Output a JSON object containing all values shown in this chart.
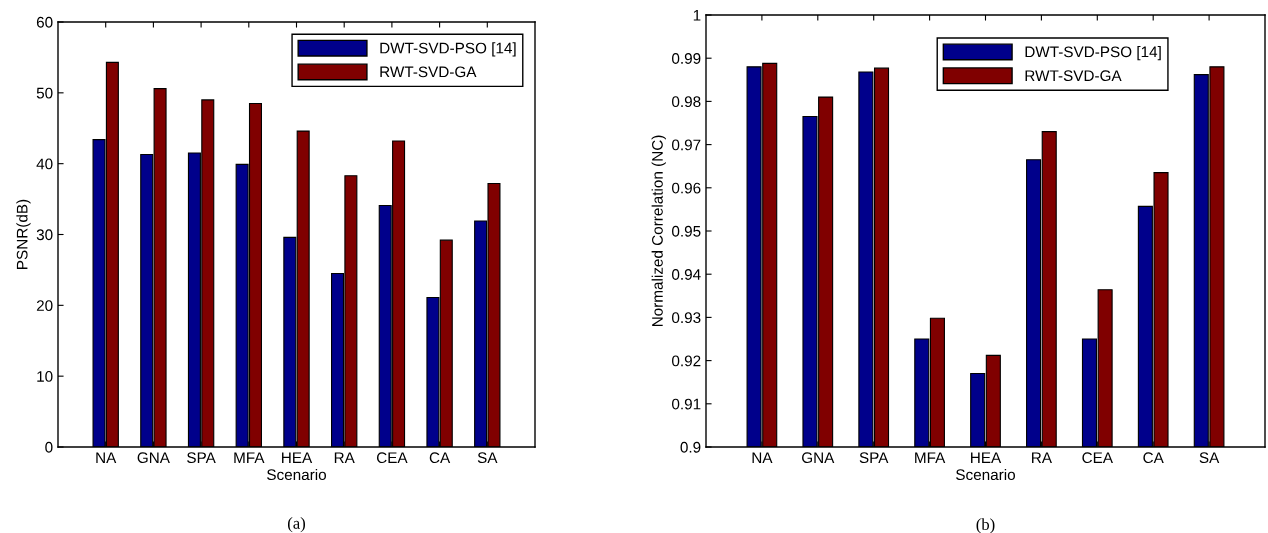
{
  "chart_data": [
    {
      "type": "bar",
      "xlabel": "Scenario",
      "ylabel": "PSNR(dB)",
      "categories": [
        "NA",
        "GNA",
        "SPA",
        "MFA",
        "HEA",
        "RA",
        "CEA",
        "CA",
        "SA"
      ],
      "series": [
        {
          "name": "DWT-SVD-PSO [14]",
          "color": "#00008b",
          "values": [
            43.4,
            41.3,
            41.5,
            39.9,
            29.6,
            24.5,
            34.1,
            21.1,
            31.9
          ]
        },
        {
          "name": "RWT-SVD-GA",
          "color": "#800000",
          "values": [
            54.3,
            50.6,
            49.0,
            48.5,
            44.6,
            38.3,
            43.2,
            29.2,
            37.2
          ]
        }
      ],
      "ylim": [
        0,
        60
      ],
      "yticks": [
        0,
        10,
        20,
        30,
        40,
        50,
        60
      ],
      "legend": "top right",
      "grid": false,
      "annotations": [
        "(a)"
      ]
    },
    {
      "type": "bar",
      "xlabel": "Scenario",
      "ylabel": "Normalized Correlation (NC)",
      "categories": [
        "NA",
        "GNA",
        "SPA",
        "MFA",
        "HEA",
        "RA",
        "CEA",
        "CA",
        "SA"
      ],
      "series": [
        {
          "name": "DWT-SVD-PSO [14]",
          "color": "#00008b",
          "values": [
            0.988,
            0.9765,
            0.9868,
            0.925,
            0.917,
            0.9665,
            0.925,
            0.9557,
            0.9862
          ]
        },
        {
          "name": "RWT-SVD-GA",
          "color": "#800000",
          "values": [
            0.9888,
            0.981,
            0.9877,
            0.9298,
            0.9212,
            0.973,
            0.9364,
            0.9635,
            0.988
          ]
        }
      ],
      "ylim": [
        0.9,
        1
      ],
      "yticks": [
        0.9,
        0.91,
        0.92,
        0.93,
        0.94,
        0.95,
        0.96,
        0.97,
        0.98,
        0.99,
        {
          "value": 1,
          "label": "1"
        }
      ],
      "legend": "top",
      "grid": false,
      "annotations": [
        "(b)"
      ]
    }
  ]
}
